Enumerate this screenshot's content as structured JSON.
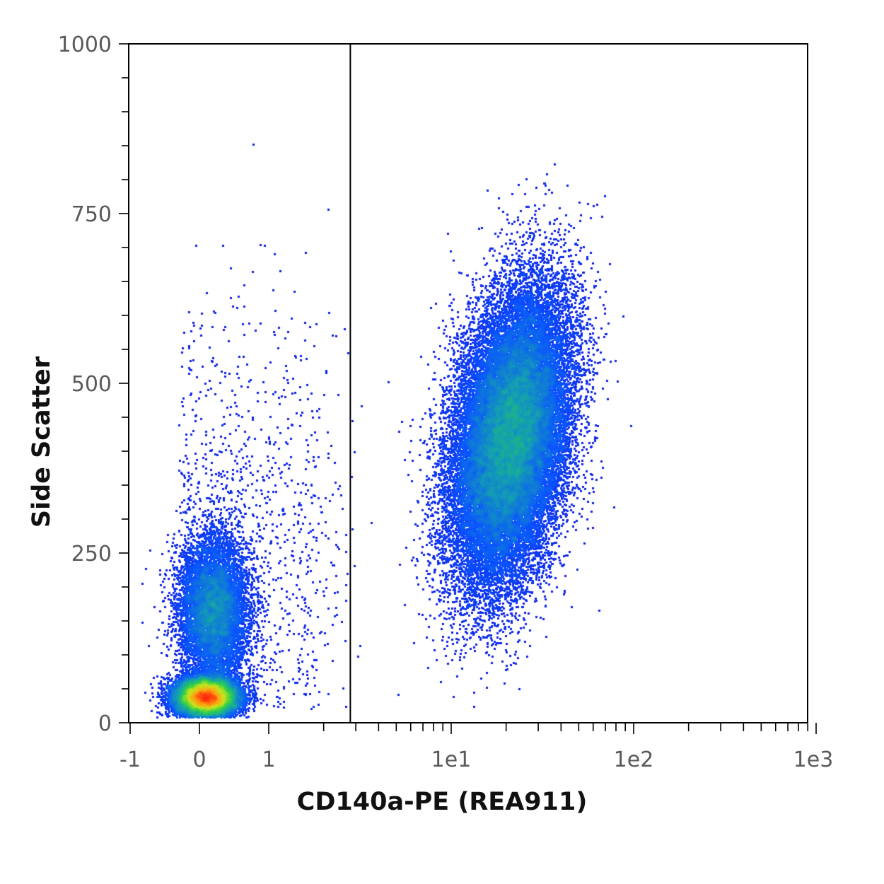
{
  "chart_data": {
    "type": "scatter",
    "style": "density dot plot (flow cytometry)",
    "xlabel": "CD140a-PE (REA911)",
    "ylabel": "Side Scatter",
    "x_scale": "biexponential (linear around 0, logarithmic above 1)",
    "xlim": [
      -1,
      1000
    ],
    "ylim": [
      0,
      1000
    ],
    "x_tick_labels": [
      "-1",
      "0",
      "1",
      "1e1",
      "1e2",
      "1e3"
    ],
    "x_tick_values": [
      -1,
      0,
      1,
      10,
      100,
      1000
    ],
    "y_tick_labels": [
      "0",
      "250",
      "500",
      "750",
      "1000"
    ],
    "y_tick_values": [
      0,
      250,
      500,
      750,
      1000
    ],
    "gate": {
      "type": "vertical line",
      "x": 2.8
    },
    "density_colormap": [
      "#1010e0",
      "#0a55ff",
      "#14a0b0",
      "#2ccf4a",
      "#c8e41c",
      "#ff9d10",
      "#ff1a0c"
    ],
    "populations": [
      {
        "name": "negative-dense",
        "center_x": 0.1,
        "center_y": 38,
        "spread_x": 0.22,
        "spread_y": 14,
        "share": 0.26
      },
      {
        "name": "negative-cloud",
        "center_x": 0.2,
        "center_y": 165,
        "spread_x": 0.25,
        "spread_y": 55,
        "share": 0.14
      },
      {
        "name": "negative-scatter",
        "center_x": 1.0,
        "center_y": 260,
        "spread_x": 1.0,
        "spread_y": 170,
        "share": 0.02
      },
      {
        "name": "positive",
        "center_x": 21,
        "center_y": 420,
        "spread_x": 0.16,
        "spread_y": 100,
        "share": 0.58
      }
    ],
    "grid": false,
    "legend": "none"
  }
}
